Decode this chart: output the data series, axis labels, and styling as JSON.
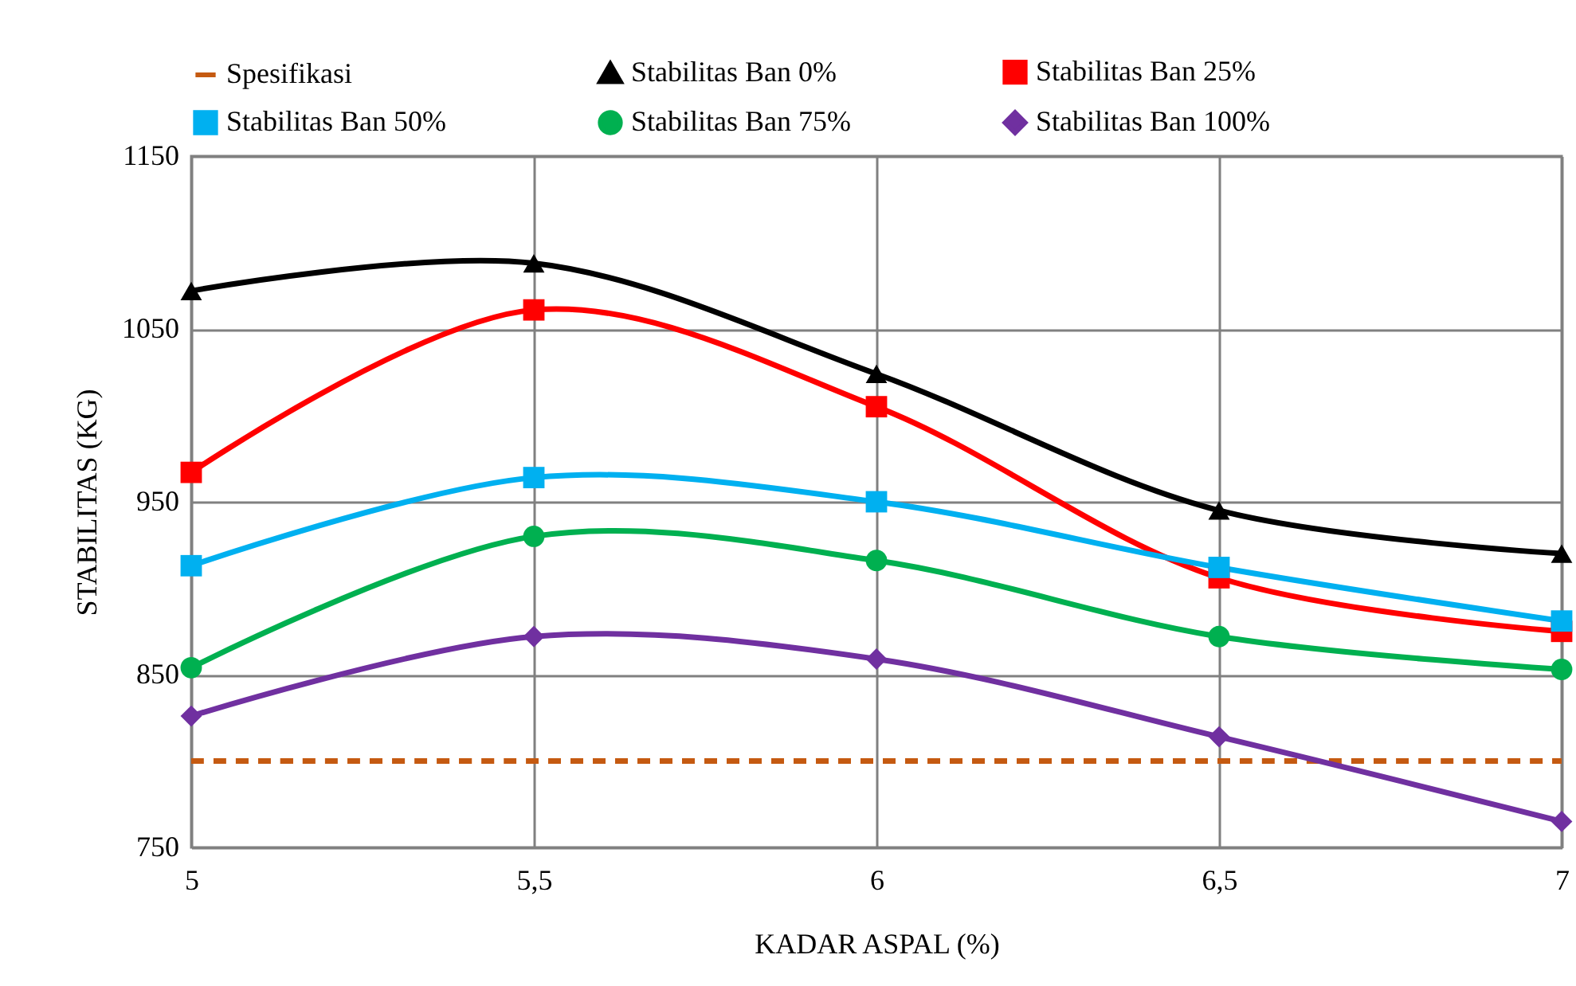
{
  "chart_data": {
    "type": "line",
    "xlabel": "KADAR ASPAL (%)",
    "ylabel": "STABILITAS (KG)",
    "x": [
      5,
      5.5,
      6,
      6.5,
      7
    ],
    "series": [
      {
        "name": "Spesifikasi",
        "color": "#c55a11",
        "values": [
          800,
          800,
          800,
          800,
          800
        ],
        "line_style": "dashed",
        "marker": "none"
      },
      {
        "name": "Stabilitas Ban 0%",
        "color": "#000000",
        "values": [
          1072,
          1088,
          1024,
          945,
          920
        ],
        "marker": "triangle"
      },
      {
        "name": "Stabilitas Ban 25%",
        "color": "#ff0000",
        "values": [
          967,
          1061,
          1005,
          906,
          875
        ],
        "marker": "square"
      },
      {
        "name": "Stabilitas Ban 50%",
        "color": "#00b0f0",
        "values": [
          913,
          964,
          950,
          912,
          881
        ],
        "marker": "square"
      },
      {
        "name": "Stabilitas Ban 75%",
        "color": "#00b050",
        "values": [
          854,
          930,
          916,
          872,
          853
        ],
        "marker": "circle"
      },
      {
        "name": "Stabilitas Ban 100%",
        "color": "#7030a0",
        "values": [
          826,
          872,
          859,
          814,
          765
        ],
        "marker": "diamond"
      }
    ],
    "xlim": [
      5,
      7
    ],
    "xticks": [
      5,
      {
        "value": 5.5,
        "label": "5,5"
      },
      6,
      {
        "value": 6.5,
        "label": "6,5"
      },
      7
    ],
    "ylim": [
      750,
      1150
    ],
    "yticks": [
      750,
      850,
      950,
      1050,
      1150
    ],
    "grid": true,
    "legend": "top"
  }
}
